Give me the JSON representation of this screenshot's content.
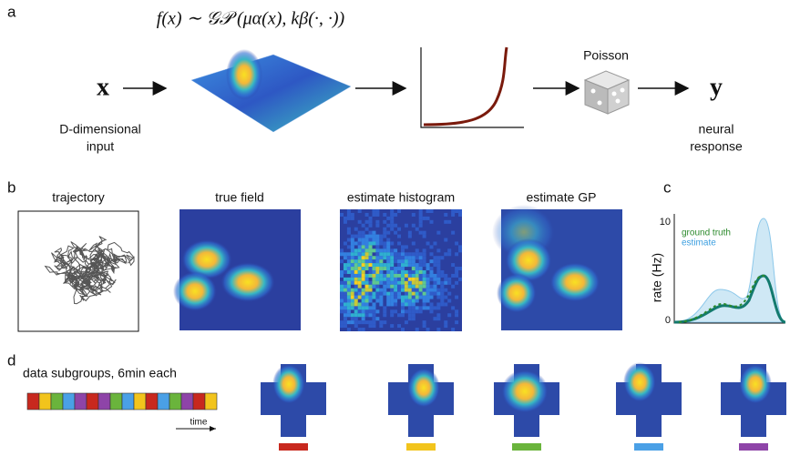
{
  "panel_a": {
    "label": "a",
    "formula": "f(x) ∼ 𝒢𝒫 (μα(x), kβ(·, ·))",
    "input_symbol": "x",
    "output_symbol": "y",
    "noise": "Poisson",
    "input_caption": [
      "D-dimensional",
      "input"
    ],
    "output_caption": [
      "neural",
      "response"
    ]
  },
  "panel_b": {
    "label": "b",
    "titles": [
      "trajectory",
      "true field",
      "estimate histogram",
      "estimate GP"
    ]
  },
  "panel_c": {
    "label": "c",
    "ylabel": "rate (Hz)",
    "yticks": [
      "10",
      "0"
    ],
    "legend": [
      "ground truth",
      "estimate"
    ]
  },
  "panel_d": {
    "label": "d",
    "title": "data subgroups, 6min each",
    "axis": "time"
  }
}
